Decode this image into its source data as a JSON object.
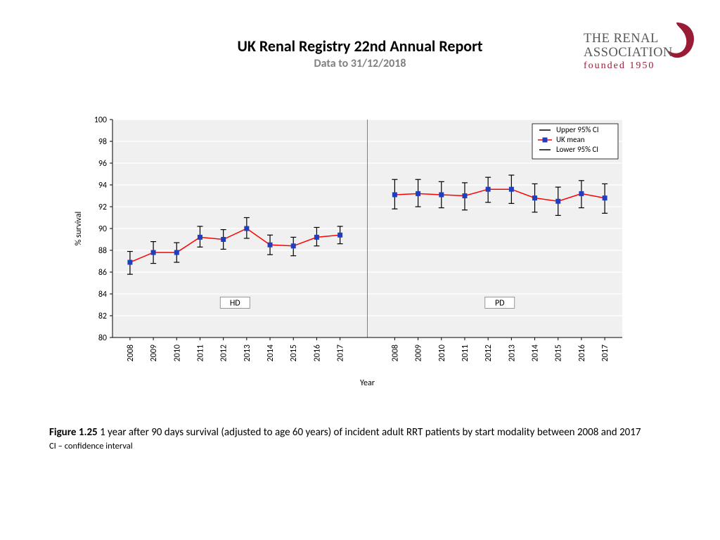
{
  "header": {
    "title": "UK Renal Registry 22nd Annual Report",
    "subtitle": "Data to 31/12/2018"
  },
  "logo": {
    "line1": "THE RENAL",
    "line2": "ASSOCIATION",
    "line3": "founded 1950",
    "text_color": "#575757",
    "founded_color": "#9a1b36",
    "swoosh_color": "#9a1b36"
  },
  "caption": {
    "label": "Figure 1.25",
    "text": "1 year after 90 days survival (adjusted to age 60 years) of incident adult RRT patients by start modality between 2008 and 2017",
    "ci_note": "CI – confidence interval"
  },
  "chart": {
    "type": "line_with_errorbars",
    "ylabel": "% survival",
    "xlabel": "Year",
    "ylim": [
      80,
      100
    ],
    "ytick_step": 2,
    "yticks": [
      80,
      82,
      84,
      86,
      88,
      90,
      92,
      94,
      96,
      98,
      100
    ],
    "background_color": "#ffffff",
    "plot_background": "#f0f0f0",
    "gridline_color": "#ffffff",
    "axis_text_color": "#000000",
    "tick_fontsize": 12,
    "label_fontsize": 12,
    "line_color": "#ff0000",
    "line_width": 1.5,
    "marker_color": "#1f3fbf",
    "marker_shape": "square",
    "marker_size": 7,
    "errorbar_color": "#000000",
    "errorbar_width": 1.2,
    "errorbar_cap": 8,
    "panel_divider_color": "#808080",
    "panel_label_border": "#808080",
    "panel_label_bg": "#ffffff",
    "legend": {
      "bg": "#ffffff",
      "border": "#000000",
      "items": [
        {
          "label": "Upper 95% CI",
          "type": "cap_upper"
        },
        {
          "label": "UK mean",
          "type": "line_marker"
        },
        {
          "label": "Lower 95% CI",
          "type": "cap_lower"
        }
      ]
    },
    "panels": [
      {
        "label": "HD",
        "years": [
          "2008",
          "2009",
          "2010",
          "2011",
          "2012",
          "2013",
          "2014",
          "2015",
          "2016",
          "2017"
        ],
        "mean": [
          86.9,
          87.8,
          87.8,
          89.2,
          89.0,
          90.0,
          88.5,
          88.4,
          89.2,
          89.4
        ],
        "lower": [
          85.8,
          86.8,
          86.9,
          88.3,
          88.1,
          89.1,
          87.6,
          87.5,
          88.4,
          88.6
        ],
        "upper": [
          87.9,
          88.8,
          88.7,
          90.2,
          89.9,
          91.0,
          89.4,
          89.2,
          90.1,
          90.2
        ]
      },
      {
        "label": "PD",
        "years": [
          "2008",
          "2009",
          "2010",
          "2011",
          "2012",
          "2013",
          "2014",
          "2015",
          "2016",
          "2017"
        ],
        "mean": [
          93.1,
          93.2,
          93.1,
          93.0,
          93.6,
          93.6,
          92.8,
          92.5,
          93.2,
          92.8
        ],
        "lower": [
          91.8,
          92.0,
          91.9,
          91.7,
          92.4,
          92.3,
          91.5,
          91.2,
          91.9,
          91.4
        ],
        "upper": [
          94.5,
          94.5,
          94.3,
          94.2,
          94.7,
          94.9,
          94.1,
          93.8,
          94.4,
          94.1
        ]
      }
    ]
  }
}
